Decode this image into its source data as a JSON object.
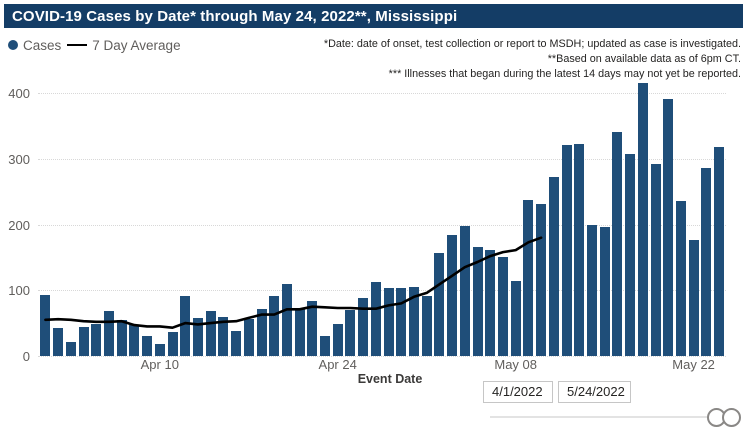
{
  "title": "COVID-19 Cases by Date* through May 24, 2022**, Mississippi",
  "legend": {
    "cases_label": "Cases",
    "avg_label": "7 Day Average"
  },
  "notes": [
    "*Date: date of onset, test collection or report to MSDH; updated as case is investigated.",
    "**Based on available data as of 6pm CT.",
    "*** Illnesses that began during the latest 14 days may not yet be reported."
  ],
  "colors": {
    "bar": "#1F4E79",
    "avg_line": "#000000",
    "title_bg": "#143D66",
    "title_fg": "#FFFFFF",
    "axis_text": "#605E5C",
    "note_text": "#252423",
    "gridline": "#D8D8D8"
  },
  "x_axis": {
    "title": "Event Date",
    "tick_labels": [
      "Apr 10",
      "Apr 24",
      "May 08",
      "May 22"
    ],
    "tick_indices": [
      9,
      23,
      37,
      51
    ]
  },
  "y_axis": {
    "ticks": [
      0,
      100,
      200,
      300,
      400
    ]
  },
  "filters": {
    "start_date": "4/1/2022",
    "end_date": "5/24/2022"
  },
  "chart_data": {
    "type": "bar",
    "title": "COVID-19 Cases by Date* through May 24, 2022**, Mississippi",
    "xlabel": "Event Date",
    "ylabel": "",
    "ylim": [
      0,
      440
    ],
    "grid": "horizontal-dotted",
    "legend_position": "top-left",
    "categories": [
      "Apr 1",
      "Apr 2",
      "Apr 3",
      "Apr 4",
      "Apr 5",
      "Apr 6",
      "Apr 7",
      "Apr 8",
      "Apr 9",
      "Apr 10",
      "Apr 11",
      "Apr 12",
      "Apr 13",
      "Apr 14",
      "Apr 15",
      "Apr 16",
      "Apr 17",
      "Apr 18",
      "Apr 19",
      "Apr 20",
      "Apr 21",
      "Apr 22",
      "Apr 23",
      "Apr 24",
      "Apr 25",
      "Apr 26",
      "Apr 27",
      "Apr 28",
      "Apr 29",
      "Apr 30",
      "May 1",
      "May 2",
      "May 3",
      "May 4",
      "May 5",
      "May 6",
      "May 7",
      "May 8",
      "May 9",
      "May 10",
      "May 11",
      "May 12",
      "May 13",
      "May 14",
      "May 15",
      "May 16",
      "May 17",
      "May 18",
      "May 19",
      "May 20",
      "May 21",
      "May 22",
      "May 23",
      "May 24"
    ],
    "series": [
      {
        "name": "Cases",
        "style": "bar",
        "values": [
          93,
          42,
          22,
          44,
          48,
          68,
          55,
          47,
          31,
          19,
          36,
          91,
          58,
          69,
          60,
          38,
          56,
          71,
          92,
          110,
          72,
          84,
          31,
          49,
          70,
          88,
          113,
          104,
          104,
          105,
          91,
          156,
          184,
          198,
          166,
          162,
          150,
          114,
          237,
          232,
          273,
          321,
          322,
          200,
          197,
          341,
          308,
          415,
          292,
          391,
          236,
          177,
          286,
          318
        ]
      },
      {
        "name": "7 Day Average",
        "style": "line",
        "note": "line ends 14 days before the last reported date",
        "values": [
          55,
          56,
          55,
          53,
          52,
          52,
          53,
          47,
          45,
          45,
          43,
          50,
          48,
          50,
          52,
          53,
          58,
          63,
          63,
          71,
          71,
          75,
          74,
          73,
          73,
          72,
          72,
          77,
          80,
          90,
          96,
          109,
          122,
          135,
          143,
          152,
          158,
          161,
          173,
          180
        ]
      }
    ]
  }
}
